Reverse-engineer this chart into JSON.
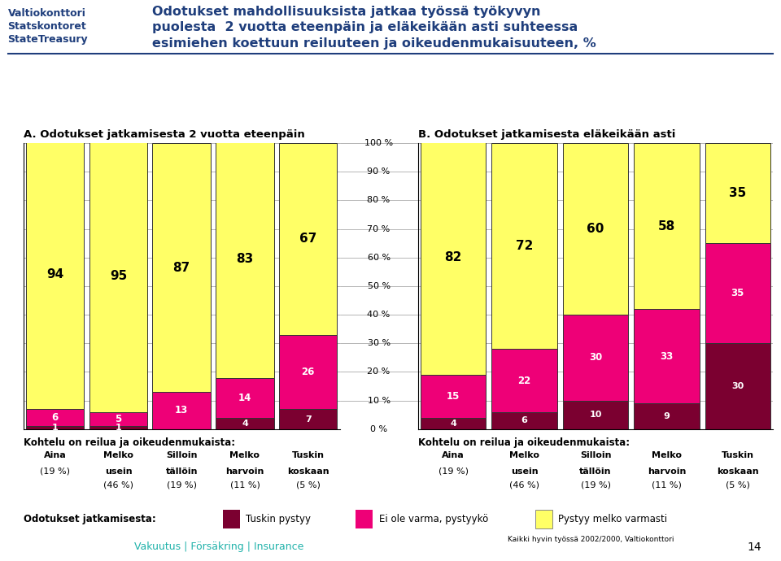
{
  "title_line1": "Odotukset mahdollisuuksista jatkaa työssä työkyvyn",
  "title_line2": "puolesta  2 vuotta eteenpäin ja eläkeikään asti suhteessa",
  "title_line3": "esimiehen koettuun reiluuteen ja oikeudenmukaisuuteen, %",
  "subtitle_A": "A. Odotukset jatkamisesta 2 vuotta eteenpäin",
  "subtitle_B": "B. Odotukset jatkamisesta eläkeikään asti",
  "logo_text": [
    "Valtiokonttori",
    "Statskontoret",
    "StateTreasury"
  ],
  "left_bars": {
    "yellow": [
      94,
      95,
      87,
      83,
      67
    ],
    "magenta": [
      6,
      5,
      13,
      14,
      26
    ],
    "dark": [
      1,
      1,
      0,
      4,
      7
    ]
  },
  "right_bars": {
    "yellow": [
      82,
      72,
      60,
      58,
      35
    ],
    "magenta": [
      15,
      22,
      30,
      33,
      35
    ],
    "dark": [
      4,
      6,
      10,
      9,
      30
    ]
  },
  "color_yellow": "#FFFF66",
  "color_magenta": "#EE0077",
  "color_dark": "#7B0030",
  "yticks": [
    0,
    10,
    20,
    30,
    40,
    50,
    60,
    70,
    80,
    90,
    100
  ],
  "legend_labels": [
    "Tuskin pystyy",
    "Ei ole varma, pystyykö",
    "Pystyy melko varmasti"
  ],
  "kohtelu_text": "Kohtelu on reilua ja oikeudenmukaista:",
  "col_labels": [
    "Aina",
    "Melko\nusein",
    "Silloin\ntällöin",
    "Melko\nharvoin",
    "Tuskin\nkoskaan"
  ],
  "col_pcts": [
    "(19 %)",
    "(46 %)",
    "(19 %)",
    "(11 %)",
    "(5 %)"
  ],
  "odotukset_label": "Odotukset jatkamisesta:",
  "footer_small": "Kaikki hyvin työssä 2002/2000, Valtiokonttori",
  "insurance_text": "Vakuutus | Försäkring | Insurance",
  "page_num": "14",
  "title_color": "#1F3E7C",
  "bar_border_color": "#333333",
  "grid_color": "#AAAAAA"
}
